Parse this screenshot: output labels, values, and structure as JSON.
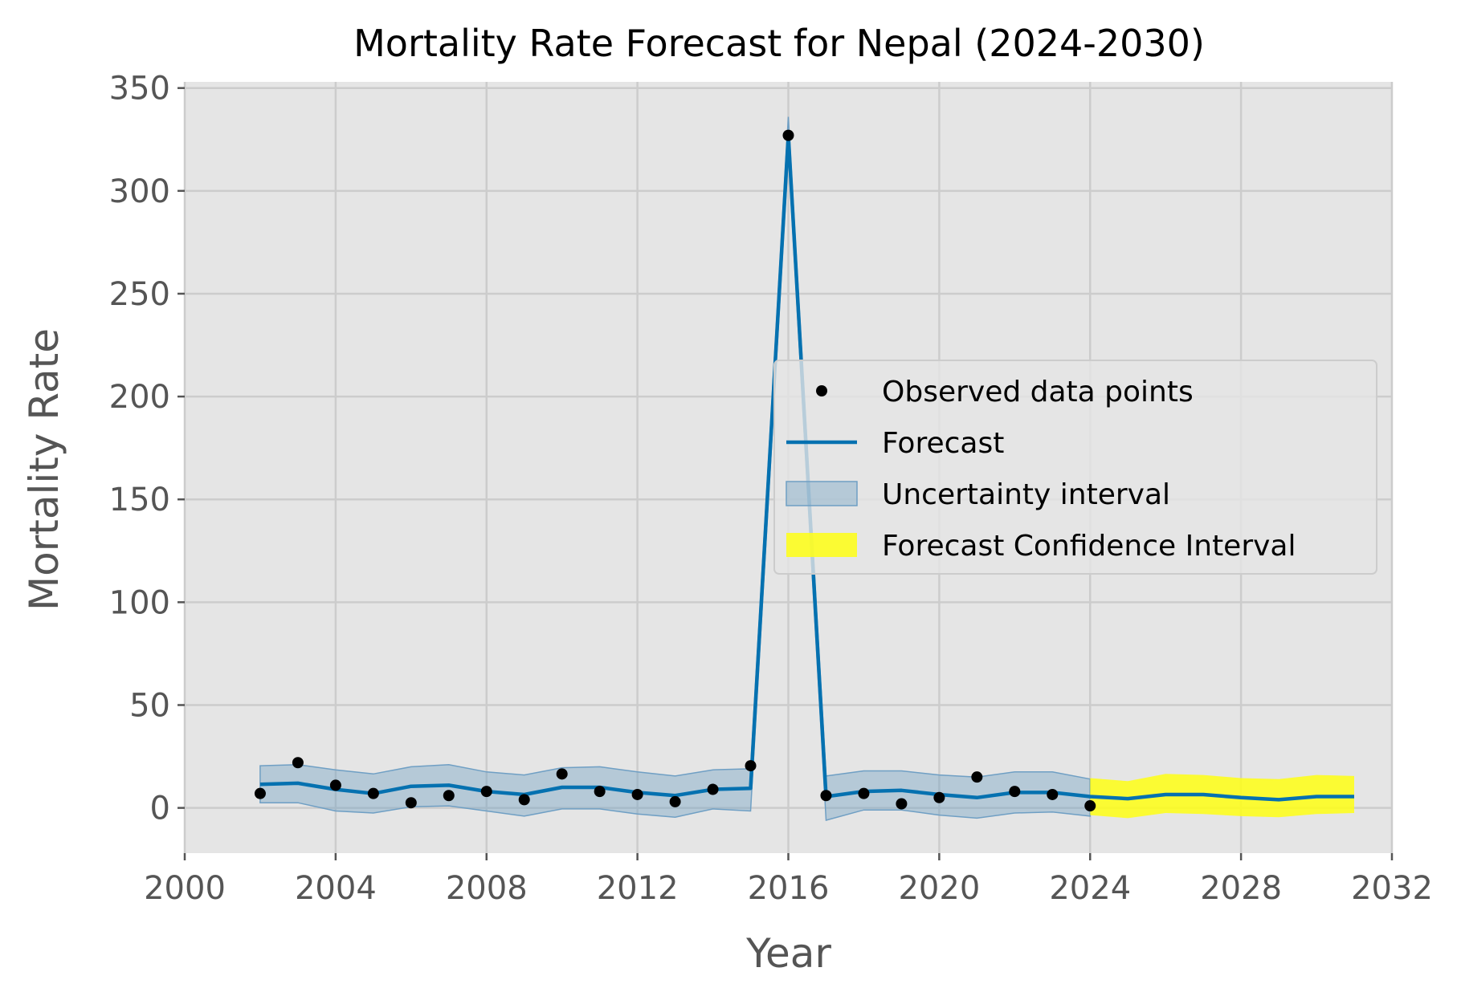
{
  "chart_data": {
    "type": "line",
    "title": "Mortality Rate Forecast for Nepal (2024-2030)",
    "xlabel": "Year",
    "ylabel": "Mortality Rate",
    "xlim": [
      2000,
      2032
    ],
    "ylim": [
      -22,
      353
    ],
    "xticks": [
      "2000",
      "2004",
      "2008",
      "2012",
      "2016",
      "2020",
      "2024",
      "2028",
      "2032"
    ],
    "xtick_values": [
      2000,
      2004,
      2008,
      2012,
      2016,
      2020,
      2024,
      2028,
      2032
    ],
    "yticks": [
      "0",
      "50",
      "100",
      "150",
      "200",
      "250",
      "300",
      "350"
    ],
    "ytick_values": [
      0,
      50,
      100,
      150,
      200,
      250,
      300,
      350
    ],
    "grid": true,
    "legend_position": "center-right",
    "legend": [
      {
        "label": "Observed data points",
        "kind": "point"
      },
      {
        "label": "Forecast",
        "kind": "line"
      },
      {
        "label": "Uncertainty interval",
        "kind": "patch-blue"
      },
      {
        "label": "Forecast Confidence Interval",
        "kind": "patch-yellow"
      }
    ],
    "colors": {
      "background": "#e5e5e5",
      "grid": "#cccccc",
      "forecast_line": "#0571b0",
      "uncertainty_fill": "#9ec0d6",
      "forecast_ci_fill": "#ffff14",
      "observed": "#000000"
    },
    "observed": {
      "x": [
        2002,
        2003,
        2004,
        2005,
        2006,
        2007,
        2008,
        2009,
        2010,
        2011,
        2012,
        2013,
        2014,
        2015,
        2016,
        2017,
        2018,
        2019,
        2020,
        2021,
        2022,
        2023,
        2024
      ],
      "y": [
        7,
        22,
        11,
        7,
        2.5,
        6,
        8,
        4,
        16.5,
        8,
        6.5,
        3,
        9,
        20.5,
        327,
        6,
        7,
        2,
        5,
        15,
        8,
        6.5,
        1
      ]
    },
    "forecast": {
      "x": [
        2002,
        2003,
        2004,
        2005,
        2006,
        2007,
        2008,
        2009,
        2010,
        2011,
        2012,
        2013,
        2014,
        2015,
        2016,
        2017,
        2018,
        2019,
        2020,
        2021,
        2022,
        2023,
        2024,
        2025,
        2026,
        2027,
        2028,
        2029,
        2030,
        2031
      ],
      "y": [
        11.5,
        12,
        9,
        7,
        10.5,
        11,
        8,
        6.5,
        10,
        10,
        7.5,
        6,
        9,
        9.5,
        327,
        5.5,
        8,
        8.5,
        6.5,
        5,
        7.5,
        7.5,
        5.5,
        4.5,
        6.5,
        6.5,
        5,
        4,
        5.5,
        5.5
      ]
    },
    "uncertainty_interval": {
      "x": [
        2002,
        2003,
        2004,
        2005,
        2006,
        2007,
        2008,
        2009,
        2010,
        2011,
        2012,
        2013,
        2014,
        2015,
        2016,
        2017,
        2018,
        2019,
        2020,
        2021,
        2022,
        2023,
        2024
      ],
      "lower": [
        2.5,
        2.5,
        -1.5,
        -2.5,
        0.5,
        1,
        -1.5,
        -4,
        -0.5,
        -0.5,
        -3,
        -4.5,
        -0.5,
        -1.5,
        318,
        -6,
        -1,
        -1,
        -3.5,
        -5,
        -2.5,
        -2,
        -4
      ],
      "upper": [
        20.5,
        21,
        18.5,
        16.5,
        20,
        21,
        17.5,
        16,
        19.5,
        20,
        17.5,
        15.5,
        18.5,
        19,
        336,
        15.5,
        18,
        18,
        16,
        15,
        17.5,
        17.5,
        14
      ]
    },
    "forecast_confidence_interval": {
      "x": [
        2024,
        2025,
        2026,
        2027,
        2028,
        2029,
        2030,
        2031
      ],
      "lower": [
        -3.5,
        -5,
        -2.5,
        -3,
        -4,
        -4.5,
        -3,
        -2.5
      ],
      "upper": [
        14.5,
        13,
        16.5,
        16,
        14.5,
        14,
        16,
        15.5
      ]
    }
  }
}
